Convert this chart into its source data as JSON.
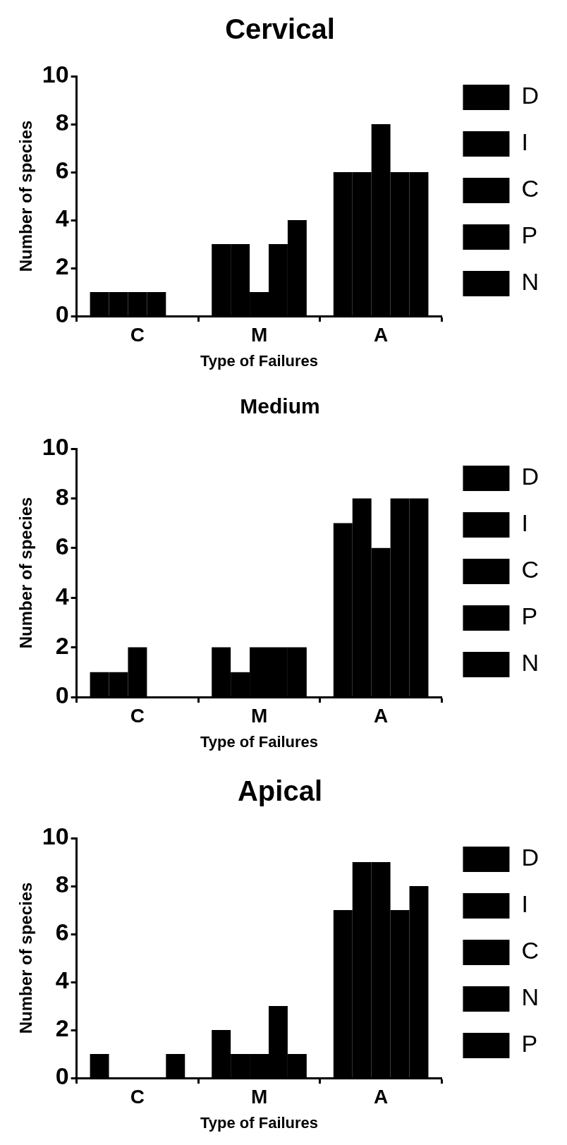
{
  "chart_data": [
    {
      "type": "bar",
      "title": "Cervical",
      "xlabel": "Type of Failures",
      "ylabel": "Number of species",
      "categories": [
        "C",
        "M",
        "A"
      ],
      "ylim": [
        0,
        10
      ],
      "yticks": [
        0,
        2,
        4,
        6,
        8,
        10
      ],
      "grid": false,
      "legend": "right",
      "series": [
        {
          "name": "D",
          "color": "#000000",
          "values": [
            1,
            3,
            6
          ]
        },
        {
          "name": "I",
          "color": "#000000",
          "values": [
            1,
            3,
            6
          ]
        },
        {
          "name": "C",
          "color": "#000000",
          "values": [
            1,
            1,
            8
          ]
        },
        {
          "name": "P",
          "color": "#000000",
          "values": [
            1,
            3,
            6
          ]
        },
        {
          "name": "N",
          "color": "#000000",
          "values": [
            0,
            4,
            6
          ]
        }
      ]
    },
    {
      "type": "bar",
      "title": "Medium",
      "xlabel": "Type of Failures",
      "ylabel": "Number of species",
      "categories": [
        "C",
        "M",
        "A"
      ],
      "ylim": [
        0,
        10
      ],
      "yticks": [
        0,
        2,
        4,
        6,
        8,
        10
      ],
      "grid": false,
      "legend": "right",
      "series": [
        {
          "name": "D",
          "color": "#000000",
          "values": [
            1,
            2,
            7
          ]
        },
        {
          "name": "I",
          "color": "#000000",
          "values": [
            1,
            1,
            8
          ]
        },
        {
          "name": "C",
          "color": "#000000",
          "values": [
            2,
            2,
            6
          ]
        },
        {
          "name": "P",
          "color": "#000000",
          "values": [
            0,
            2,
            8
          ]
        },
        {
          "name": "N",
          "color": "#000000",
          "values": [
            0,
            2,
            8
          ]
        }
      ]
    },
    {
      "type": "bar",
      "title": "Apical",
      "xlabel": "Type of Failures",
      "ylabel": "Number of species",
      "categories": [
        "C",
        "M",
        "A"
      ],
      "ylim": [
        0,
        10
      ],
      "yticks": [
        0,
        2,
        4,
        6,
        8,
        10
      ],
      "grid": false,
      "legend": "right",
      "series": [
        {
          "name": "D",
          "color": "#000000",
          "values": [
            1,
            2,
            7
          ]
        },
        {
          "name": "I",
          "color": "#000000",
          "values": [
            0,
            1,
            9
          ]
        },
        {
          "name": "C",
          "color": "#000000",
          "values": [
            0,
            1,
            9
          ]
        },
        {
          "name": "N",
          "color": "#000000",
          "values": [
            0,
            3,
            7
          ]
        },
        {
          "name": "P",
          "color": "#000000",
          "values": [
            1,
            1,
            8
          ]
        }
      ]
    }
  ]
}
